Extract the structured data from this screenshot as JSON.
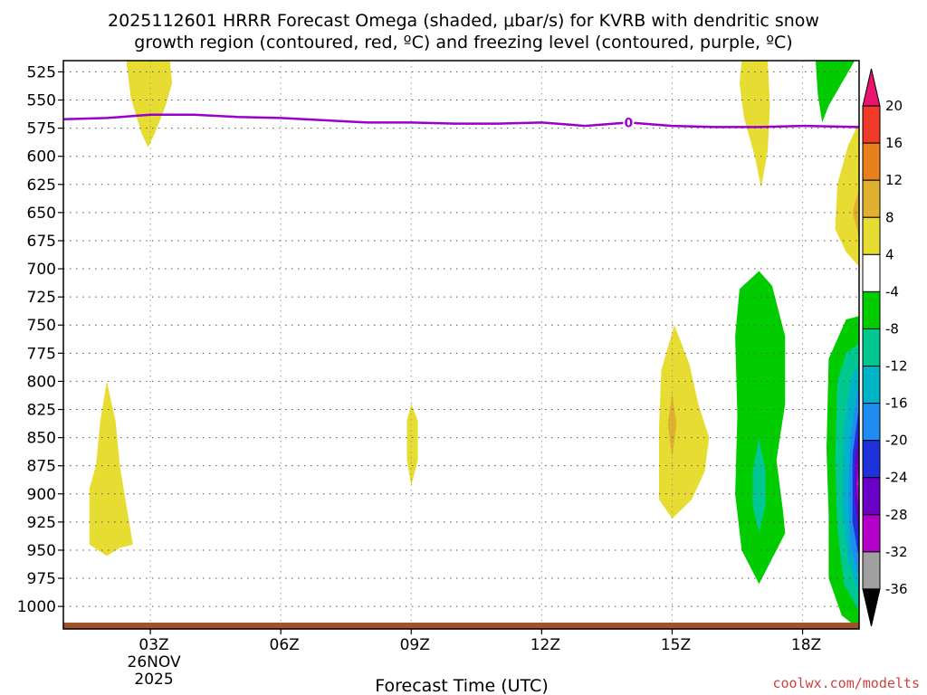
{
  "chart_data": {
    "type": "heatmap",
    "title_line1": "2025112601 HRRR Forecast Omega (shaded, μbar/s) for KVRB with dendritic snow",
    "title_line2": "growth region (contoured, red, ºC) and freezing level (contoured, purple, ºC)",
    "xlabel": "Forecast Time (UTC)",
    "credit": "coolwx.com/modelts",
    "x_range_hours": [
      1,
      19.3
    ],
    "y_range_hpa": [
      515,
      1020
    ],
    "x_ticks": [
      {
        "hour": 3,
        "label": "03Z",
        "sub1": "26NOV",
        "sub2": "2025"
      },
      {
        "hour": 6,
        "label": "06Z"
      },
      {
        "hour": 9,
        "label": "09Z"
      },
      {
        "hour": 12,
        "label": "12Z"
      },
      {
        "hour": 15,
        "label": "15Z"
      },
      {
        "hour": 18,
        "label": "18Z"
      }
    ],
    "y_ticks": [
      525,
      550,
      575,
      600,
      625,
      650,
      675,
      700,
      725,
      750,
      775,
      800,
      825,
      850,
      875,
      900,
      925,
      950,
      975,
      1000
    ],
    "colorbar": {
      "labels": [
        "20",
        "16",
        "12",
        "8",
        "4",
        "-4",
        "-8",
        "-12",
        "-16",
        "-20",
        "-24",
        "-28",
        "-32",
        "-36"
      ],
      "colors": [
        "#e8146e",
        "#f03a2a",
        "#e8801e",
        "#e0b02e",
        "#e6dc32",
        "#ffffff",
        "#00cc00",
        "#00c890",
        "#00b4c8",
        "#1e8cf0",
        "#1e32dc",
        "#6a00c8",
        "#b400c8",
        "#a0a0a0",
        "#000000"
      ]
    },
    "shading_colors": {
      "yellow": "#e6dc32",
      "orange": "#e0b02e",
      "green": "#00cc00",
      "teal": "#00c890",
      "cyan": "#00b4c8",
      "blue": "#1e8cf0",
      "darkblue": "#1e32dc",
      "purple": "#6a00c8",
      "magenta": "#b400c8",
      "gray": "#a0a0a0"
    },
    "surface_color": "#a0522d",
    "freezing_level": {
      "label": "0",
      "color": "#9900cc",
      "points": [
        [
          1.0,
          567
        ],
        [
          2.0,
          566
        ],
        [
          3.0,
          563
        ],
        [
          4.0,
          563
        ],
        [
          5.0,
          565
        ],
        [
          6.0,
          566
        ],
        [
          7.0,
          568
        ],
        [
          8.0,
          570
        ],
        [
          9.0,
          570
        ],
        [
          10.0,
          571
        ],
        [
          11.0,
          571
        ],
        [
          12.0,
          570
        ],
        [
          13.0,
          573
        ],
        [
          14.0,
          570
        ],
        [
          15.0,
          573
        ],
        [
          16.0,
          574
        ],
        [
          17.0,
          574
        ],
        [
          18.0,
          573
        ],
        [
          19.3,
          574
        ]
      ]
    },
    "regions": [
      {
        "name": "yellow-omega-region",
        "fill": "yellow",
        "points": [
          [
            2.45,
            515
          ],
          [
            3.45,
            515
          ],
          [
            3.5,
            535
          ],
          [
            3.35,
            555
          ],
          [
            3.1,
            580
          ],
          [
            2.95,
            592
          ],
          [
            2.8,
            580
          ],
          [
            2.55,
            548
          ]
        ]
      },
      {
        "name": "yellow-omega-region",
        "fill": "yellow",
        "points": [
          [
            2.0,
            800
          ],
          [
            2.2,
            835
          ],
          [
            2.3,
            875
          ],
          [
            2.45,
            910
          ],
          [
            2.6,
            945
          ],
          [
            2.3,
            948
          ],
          [
            2.0,
            955
          ],
          [
            1.6,
            945
          ],
          [
            1.6,
            895
          ],
          [
            1.75,
            875
          ],
          [
            1.85,
            835
          ]
        ]
      },
      {
        "name": "yellow-omega-region",
        "fill": "yellow",
        "points": [
          [
            9.0,
            820
          ],
          [
            9.15,
            835
          ],
          [
            9.15,
            870
          ],
          [
            9.0,
            893
          ],
          [
            8.9,
            870
          ],
          [
            8.9,
            835
          ]
        ]
      },
      {
        "name": "yellow-omega-region",
        "fill": "yellow",
        "points": [
          [
            15.05,
            750
          ],
          [
            15.4,
            785
          ],
          [
            15.6,
            820
          ],
          [
            15.85,
            850
          ],
          [
            15.75,
            880
          ],
          [
            15.45,
            905
          ],
          [
            15.0,
            922
          ],
          [
            14.7,
            905
          ],
          [
            14.7,
            840
          ],
          [
            14.75,
            790
          ]
        ]
      },
      {
        "name": "orange-omega-region",
        "fill": "orange",
        "points": [
          [
            15.0,
            810
          ],
          [
            15.1,
            838
          ],
          [
            15.0,
            868
          ],
          [
            14.9,
            838
          ]
        ]
      },
      {
        "name": "yellow-omega-region",
        "fill": "yellow",
        "points": [
          [
            16.6,
            515
          ],
          [
            17.2,
            515
          ],
          [
            17.25,
            555
          ],
          [
            17.2,
            595
          ],
          [
            17.05,
            628
          ],
          [
            16.9,
            600
          ],
          [
            16.65,
            565
          ],
          [
            16.55,
            535
          ]
        ]
      },
      {
        "name": "yellow-omega-region",
        "fill": "yellow",
        "points": [
          [
            19.3,
            570
          ],
          [
            19.3,
            698
          ],
          [
            19.0,
            685
          ],
          [
            18.75,
            665
          ],
          [
            18.8,
            625
          ],
          [
            19.05,
            590
          ]
        ]
      },
      {
        "name": "orange-omega-region",
        "fill": "orange",
        "points": [
          [
            19.3,
            628
          ],
          [
            19.3,
            672
          ],
          [
            19.15,
            650
          ]
        ]
      },
      {
        "name": "green-omega-region",
        "fill": "green",
        "points": [
          [
            18.3,
            515
          ],
          [
            19.2,
            515
          ],
          [
            18.9,
            535
          ],
          [
            18.6,
            555
          ],
          [
            18.45,
            570
          ],
          [
            18.35,
            545
          ]
        ]
      },
      {
        "name": "green-omega-region",
        "fill": "green",
        "points": [
          [
            17.0,
            702
          ],
          [
            17.3,
            715
          ],
          [
            17.6,
            760
          ],
          [
            17.6,
            820
          ],
          [
            17.4,
            870
          ],
          [
            17.55,
            915
          ],
          [
            17.6,
            935
          ],
          [
            17.4,
            950
          ],
          [
            17.0,
            980
          ],
          [
            16.6,
            950
          ],
          [
            16.45,
            900
          ],
          [
            16.5,
            830
          ],
          [
            16.45,
            760
          ],
          [
            16.55,
            718
          ]
        ]
      },
      {
        "name": "teal-omega-region",
        "fill": "teal",
        "points": [
          [
            17.0,
            850
          ],
          [
            17.15,
            880
          ],
          [
            17.15,
            910
          ],
          [
            17.0,
            935
          ],
          [
            16.85,
            910
          ],
          [
            16.85,
            880
          ]
        ]
      },
      {
        "name": "green-omega-region",
        "fill": "green",
        "points": [
          [
            19.0,
            745
          ],
          [
            19.3,
            742
          ],
          [
            19.3,
            1020
          ],
          [
            18.9,
            1008
          ],
          [
            18.6,
            975
          ],
          [
            18.6,
            920
          ],
          [
            18.55,
            860
          ],
          [
            18.6,
            780
          ]
        ]
      },
      {
        "name": "teal-omega-region",
        "fill": "teal",
        "points": [
          [
            19.3,
            766
          ],
          [
            19.3,
            1005
          ],
          [
            18.95,
            980
          ],
          [
            18.8,
            930
          ],
          [
            18.75,
            870
          ],
          [
            18.8,
            800
          ],
          [
            19.0,
            775
          ]
        ]
      },
      {
        "name": "cyan-omega-region",
        "fill": "cyan",
        "points": [
          [
            19.3,
            782
          ],
          [
            19.3,
            990
          ],
          [
            19.05,
            960
          ],
          [
            18.9,
            910
          ],
          [
            18.95,
            845
          ],
          [
            19.1,
            800
          ]
        ]
      },
      {
        "name": "blue-omega-region",
        "fill": "blue",
        "points": [
          [
            19.3,
            800
          ],
          [
            19.3,
            975
          ],
          [
            19.1,
            945
          ],
          [
            19.05,
            900
          ],
          [
            19.1,
            850
          ]
        ]
      },
      {
        "name": "darkblue-omega-region",
        "fill": "darkblue",
        "points": [
          [
            19.3,
            822
          ],
          [
            19.3,
            958
          ],
          [
            19.15,
            925
          ],
          [
            19.15,
            865
          ]
        ]
      },
      {
        "name": "purple-omega-region",
        "fill": "purple",
        "points": [
          [
            19.3,
            842
          ],
          [
            19.3,
            940
          ],
          [
            19.2,
            905
          ],
          [
            19.2,
            870
          ]
        ]
      },
      {
        "name": "magenta-omega-region",
        "fill": "magenta",
        "points": [
          [
            19.3,
            862
          ],
          [
            19.3,
            920
          ],
          [
            19.24,
            892
          ]
        ]
      },
      {
        "name": "gray-omega-region",
        "fill": "gray",
        "points": [
          [
            19.3,
            880
          ],
          [
            19.3,
            902
          ],
          [
            19.27,
            891
          ]
        ]
      }
    ]
  }
}
